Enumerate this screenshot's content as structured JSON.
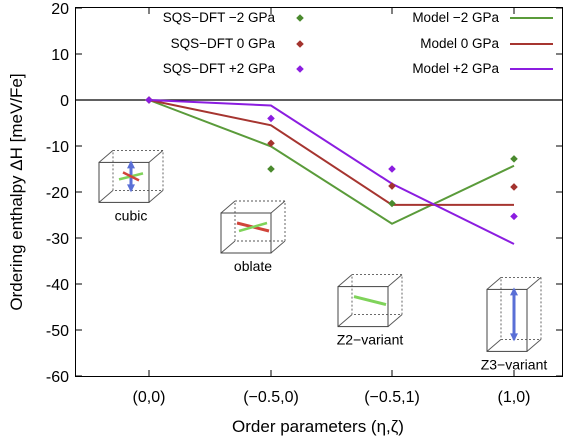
{
  "chart_data": {
    "type": "line",
    "xlabel": "Order parameters (η,ζ)",
    "ylabel": "Ordering enthalpy ΔH [meV/Fe]",
    "categories": [
      "(0,0)",
      "(−0.5,0)",
      "(−0.5,1)",
      "(1,0)"
    ],
    "ylim": [
      -60,
      20
    ],
    "yticks": [
      20,
      10,
      0,
      -10,
      -20,
      -30,
      -40,
      -50,
      -60
    ],
    "reference_line_y": 0,
    "grid": false,
    "legend_position": "top",
    "series": [
      {
        "name": "SQS−DFT −2 GPa",
        "kind": "points",
        "marker": "diamond",
        "color": "#4a8a2e",
        "values": [
          0,
          -15.0,
          -22.5,
          -12.8
        ]
      },
      {
        "name": "SQS−DFT   0 GPa",
        "kind": "points",
        "marker": "diamond",
        "color": "#a3332e",
        "values": [
          0,
          -9.4,
          -18.7,
          -18.9
        ]
      },
      {
        "name": "SQS−DFT +2 GPa",
        "kind": "points",
        "marker": "diamond",
        "color": "#8b1de0",
        "values": [
          0,
          -4.0,
          -15.0,
          -25.3
        ]
      },
      {
        "name": "Model −2 GPa",
        "kind": "line",
        "color": "#5a9b3a",
        "values": [
          0,
          -10.1,
          -26.9,
          -14.3
        ]
      },
      {
        "name": "Model   0 GPa",
        "kind": "line",
        "color": "#a63530",
        "values": [
          0,
          -5.5,
          -22.8,
          -22.8
        ]
      },
      {
        "name": "Model +2 GPa",
        "kind": "line",
        "color": "#8b1de0",
        "values": [
          0,
          -1.2,
          -18.2,
          -31.3
        ]
      }
    ],
    "insets": [
      {
        "label": "cubic",
        "at_category": 0,
        "at_value": -14,
        "arrow": "vertical",
        "arrow_color": "#5a6fd6"
      },
      {
        "label": "oblate",
        "at_category": 1,
        "at_value": -25,
        "arrow": "diagonal",
        "arrow_color": "#d0443a"
      },
      {
        "label": "Z2−variant",
        "at_category": 2,
        "at_value": -41,
        "arrow": "diagonal",
        "arrow_color": "#7fd35a"
      },
      {
        "label": "Z3−variant",
        "at_category": 3,
        "at_value": -44,
        "arrow": "vertical",
        "arrow_color": "#5a6fd6"
      }
    ]
  }
}
